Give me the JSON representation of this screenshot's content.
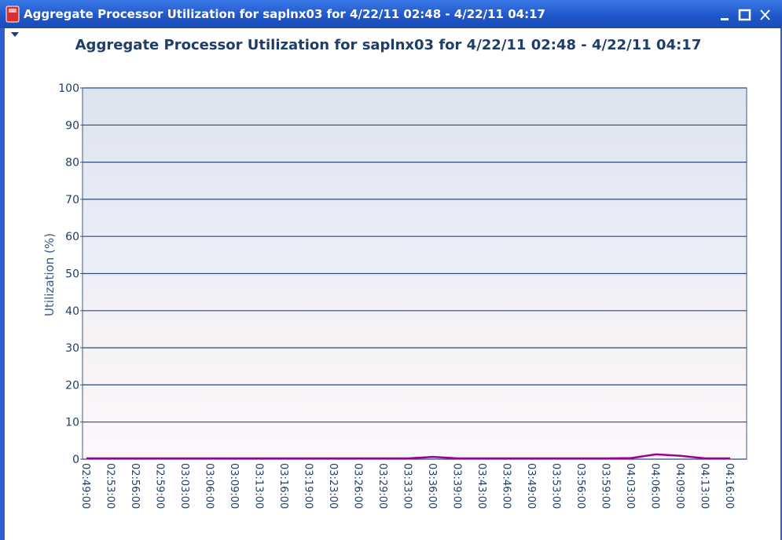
{
  "window": {
    "title": "Aggregate Processor Utilization for saplnx03 for  4/22/11 02:48 - 4/22/11 04:17"
  },
  "chart_data": {
    "type": "line",
    "title": "Aggregate Processor Utilization for saplnx03 for 4/22/11 02:48 - 4/22/11 04:17",
    "y_label": "Utilization (%)",
    "categories": [
      "02:49:00",
      "02:53:00",
      "02:56:00",
      "02:59:00",
      "03:03:00",
      "03:06:00",
      "03:09:00",
      "03:13:00",
      "03:16:00",
      "03:19:00",
      "03:23:00",
      "03:26:00",
      "03:29:00",
      "03:33:00",
      "03:36:00",
      "03:39:00",
      "03:43:00",
      "03:46:00",
      "03:49:00",
      "03:53:00",
      "03:56:00",
      "03:59:00",
      "04:03:00",
      "04:06:00",
      "04:09:00",
      "04:13:00",
      "04:16:00"
    ],
    "series": [
      {
        "name": "Utilization",
        "color": "#990099",
        "values": [
          0.2,
          0.2,
          0.2,
          0.2,
          0.2,
          0.2,
          0.2,
          0.2,
          0.2,
          0.2,
          0.2,
          0.2,
          0.2,
          0.2,
          0.6,
          0.2,
          0.2,
          0.2,
          0.2,
          0.2,
          0.2,
          0.2,
          0.3,
          1.3,
          0.9,
          0.2,
          0.2
        ]
      }
    ],
    "ylim": [
      0,
      100
    ],
    "yticks": [
      0,
      10,
      20,
      30,
      40,
      50,
      60,
      70,
      80,
      90,
      100
    ],
    "grid": true
  }
}
